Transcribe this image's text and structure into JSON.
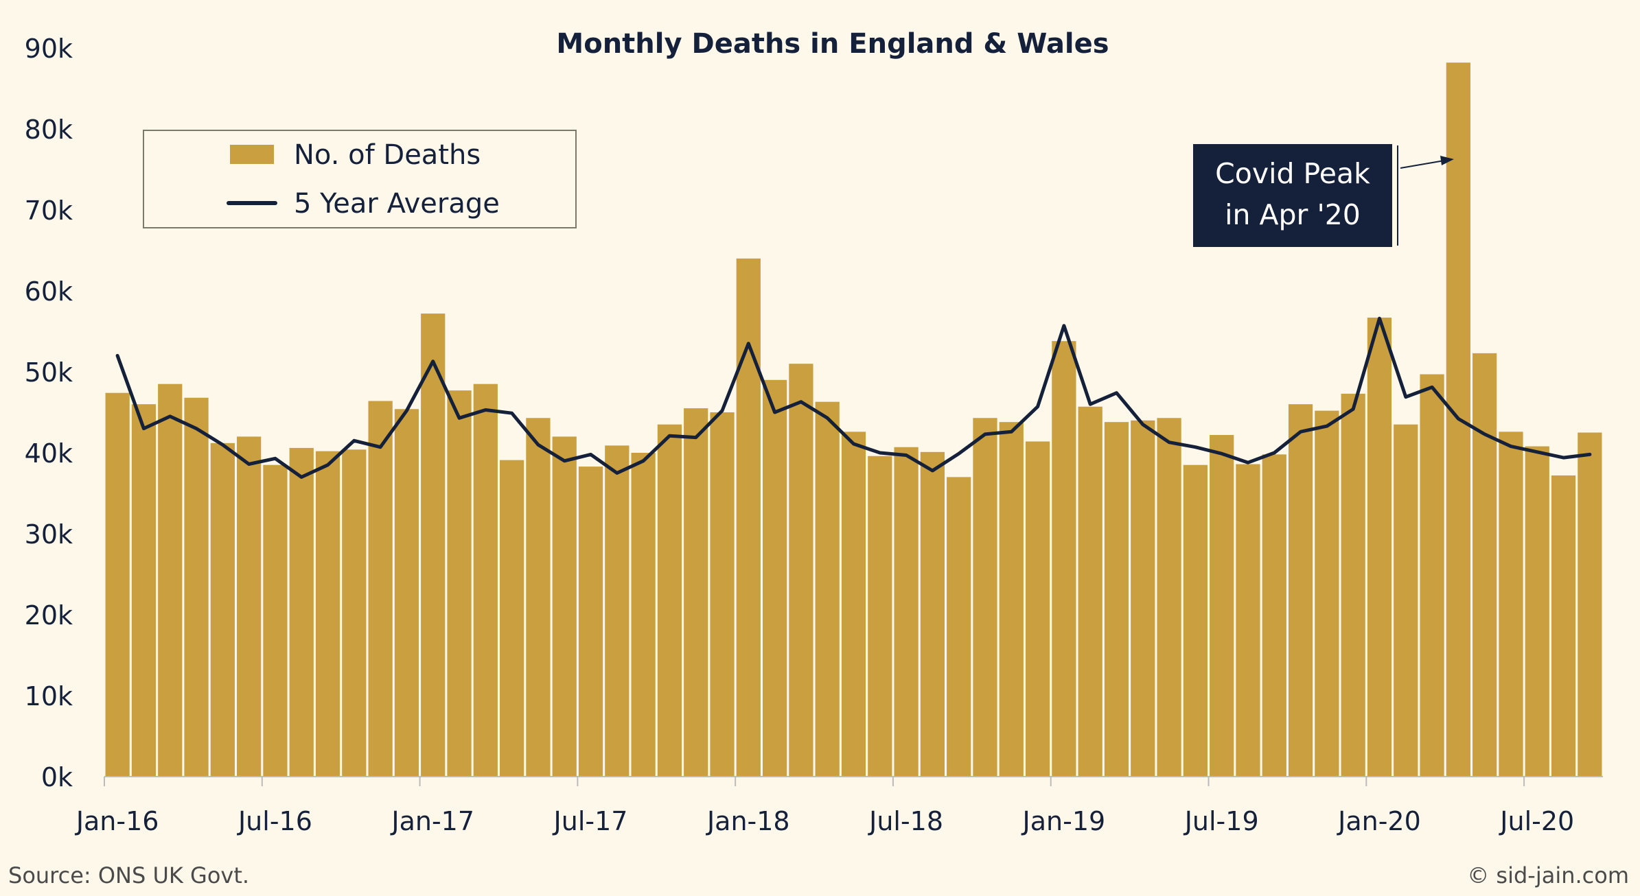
{
  "colors": {
    "background": "#fdf8ea",
    "bar": "#c99f3f",
    "line": "#15213a",
    "text": "#15213a",
    "annotation_bg": "#15213a"
  },
  "chart_data": {
    "type": "bar",
    "title": "Monthly Deaths in England & Wales",
    "xlabel": "",
    "ylabel": "",
    "ylim": [
      0,
      90000
    ],
    "y_ticks": [
      "0k",
      "10k",
      "20k",
      "30k",
      "40k",
      "50k",
      "60k",
      "70k",
      "80k",
      "90k"
    ],
    "x_ticks": [
      "Jan-16",
      "Jul-16",
      "Jan-17",
      "Jul-17",
      "Jan-18",
      "Jul-18",
      "Jan-19",
      "Jul-19",
      "Jan-20",
      "Jul-20"
    ],
    "grid": false,
    "legend_position": "top-left",
    "categories": [
      "Jan-16",
      "Feb-16",
      "Mar-16",
      "Apr-16",
      "May-16",
      "Jun-16",
      "Jul-16",
      "Aug-16",
      "Sep-16",
      "Oct-16",
      "Nov-16",
      "Dec-16",
      "Jan-17",
      "Feb-17",
      "Mar-17",
      "Apr-17",
      "May-17",
      "Jun-17",
      "Jul-17",
      "Aug-17",
      "Sep-17",
      "Oct-17",
      "Nov-17",
      "Dec-17",
      "Jan-18",
      "Feb-18",
      "Mar-18",
      "Apr-18",
      "May-18",
      "Jun-18",
      "Jul-18",
      "Aug-18",
      "Sep-18",
      "Oct-18",
      "Nov-18",
      "Dec-18",
      "Jan-19",
      "Feb-19",
      "Mar-19",
      "Apr-19",
      "May-19",
      "Jun-19",
      "Jul-19",
      "Aug-19",
      "Sep-19",
      "Oct-19",
      "Nov-19",
      "Dec-19",
      "Jan-20",
      "Feb-20",
      "Mar-20",
      "Apr-20",
      "May-20",
      "Jun-20",
      "Jul-20",
      "Aug-20",
      "Sep-20"
    ],
    "series": [
      {
        "name": "No. of Deaths",
        "type": "bar",
        "values": [
          47400,
          46000,
          48500,
          46800,
          41200,
          42000,
          38500,
          40600,
          40200,
          40400,
          46400,
          45400,
          57200,
          47700,
          48500,
          39100,
          44300,
          42000,
          38300,
          40900,
          40000,
          43500,
          45500,
          45000,
          64000,
          49000,
          51000,
          46300,
          42600,
          39600,
          40700,
          40100,
          37000,
          44300,
          43800,
          41400,
          53800,
          45700,
          43800,
          44000,
          44300,
          38500,
          42200,
          38600,
          39800,
          46000,
          45200,
          47300,
          56700,
          43500,
          49700,
          88200,
          52300,
          42600,
          40800,
          37200,
          42500
        ]
      },
      {
        "name": "5 Year Average",
        "type": "line",
        "values": [
          52000,
          43000,
          44500,
          43000,
          41000,
          38600,
          39300,
          37000,
          38500,
          41500,
          40700,
          45200,
          51300,
          44300,
          45300,
          44900,
          41000,
          39000,
          39800,
          37500,
          39000,
          42100,
          41900,
          45200,
          53500,
          45000,
          46300,
          44300,
          41100,
          40000,
          39700,
          37800,
          39900,
          42300,
          42600,
          45700,
          55700,
          46000,
          47400,
          43500,
          41300,
          40700,
          39900,
          38800,
          40000,
          42600,
          43300,
          45400,
          56600,
          46900,
          48100,
          44200,
          42300,
          40800,
          40100,
          39400,
          39800
        ]
      }
    ],
    "annotations": [
      {
        "text_lines": [
          "Covid Peak",
          "in Apr '20"
        ],
        "target": "Apr-20"
      }
    ]
  },
  "footer": {
    "source": "Source: ONS UK Govt.",
    "credit": "© sid-jain.com"
  }
}
